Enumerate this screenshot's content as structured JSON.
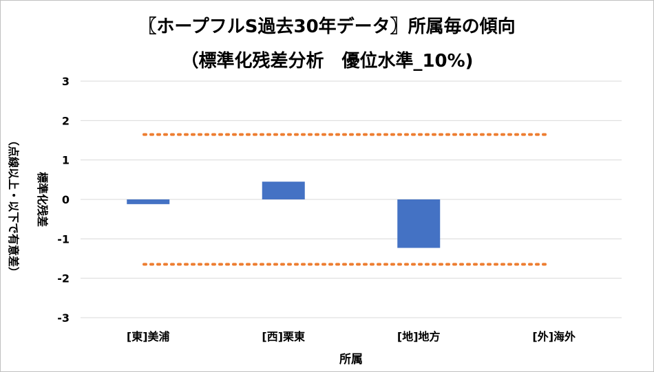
{
  "chart_data": {
    "type": "bar",
    "title": "〖ホープフルS過去30年データ〗所属毎の傾向",
    "subtitle": "（標準化残差分析　優位水準_10%)",
    "xlabel": "所属",
    "ylabel": "標準化残差",
    "ylabel_note": "（点線以上・以下で有意差）",
    "categories": [
      "[東]美浦",
      "[西]栗東",
      "[地]地方",
      "[外]海外"
    ],
    "values": [
      -0.12,
      0.45,
      -1.23,
      0
    ],
    "ylim": [
      -3,
      3
    ],
    "yticks": [
      "3",
      "2",
      "1",
      "0",
      "-1",
      "-2",
      "-3"
    ],
    "threshold_lines": [
      1.645,
      -1.645
    ],
    "grid": true,
    "legend": "none",
    "colors": {
      "bar": "#4472C4",
      "threshold": "#ED7D31",
      "grid": "#d9d9d9"
    }
  }
}
